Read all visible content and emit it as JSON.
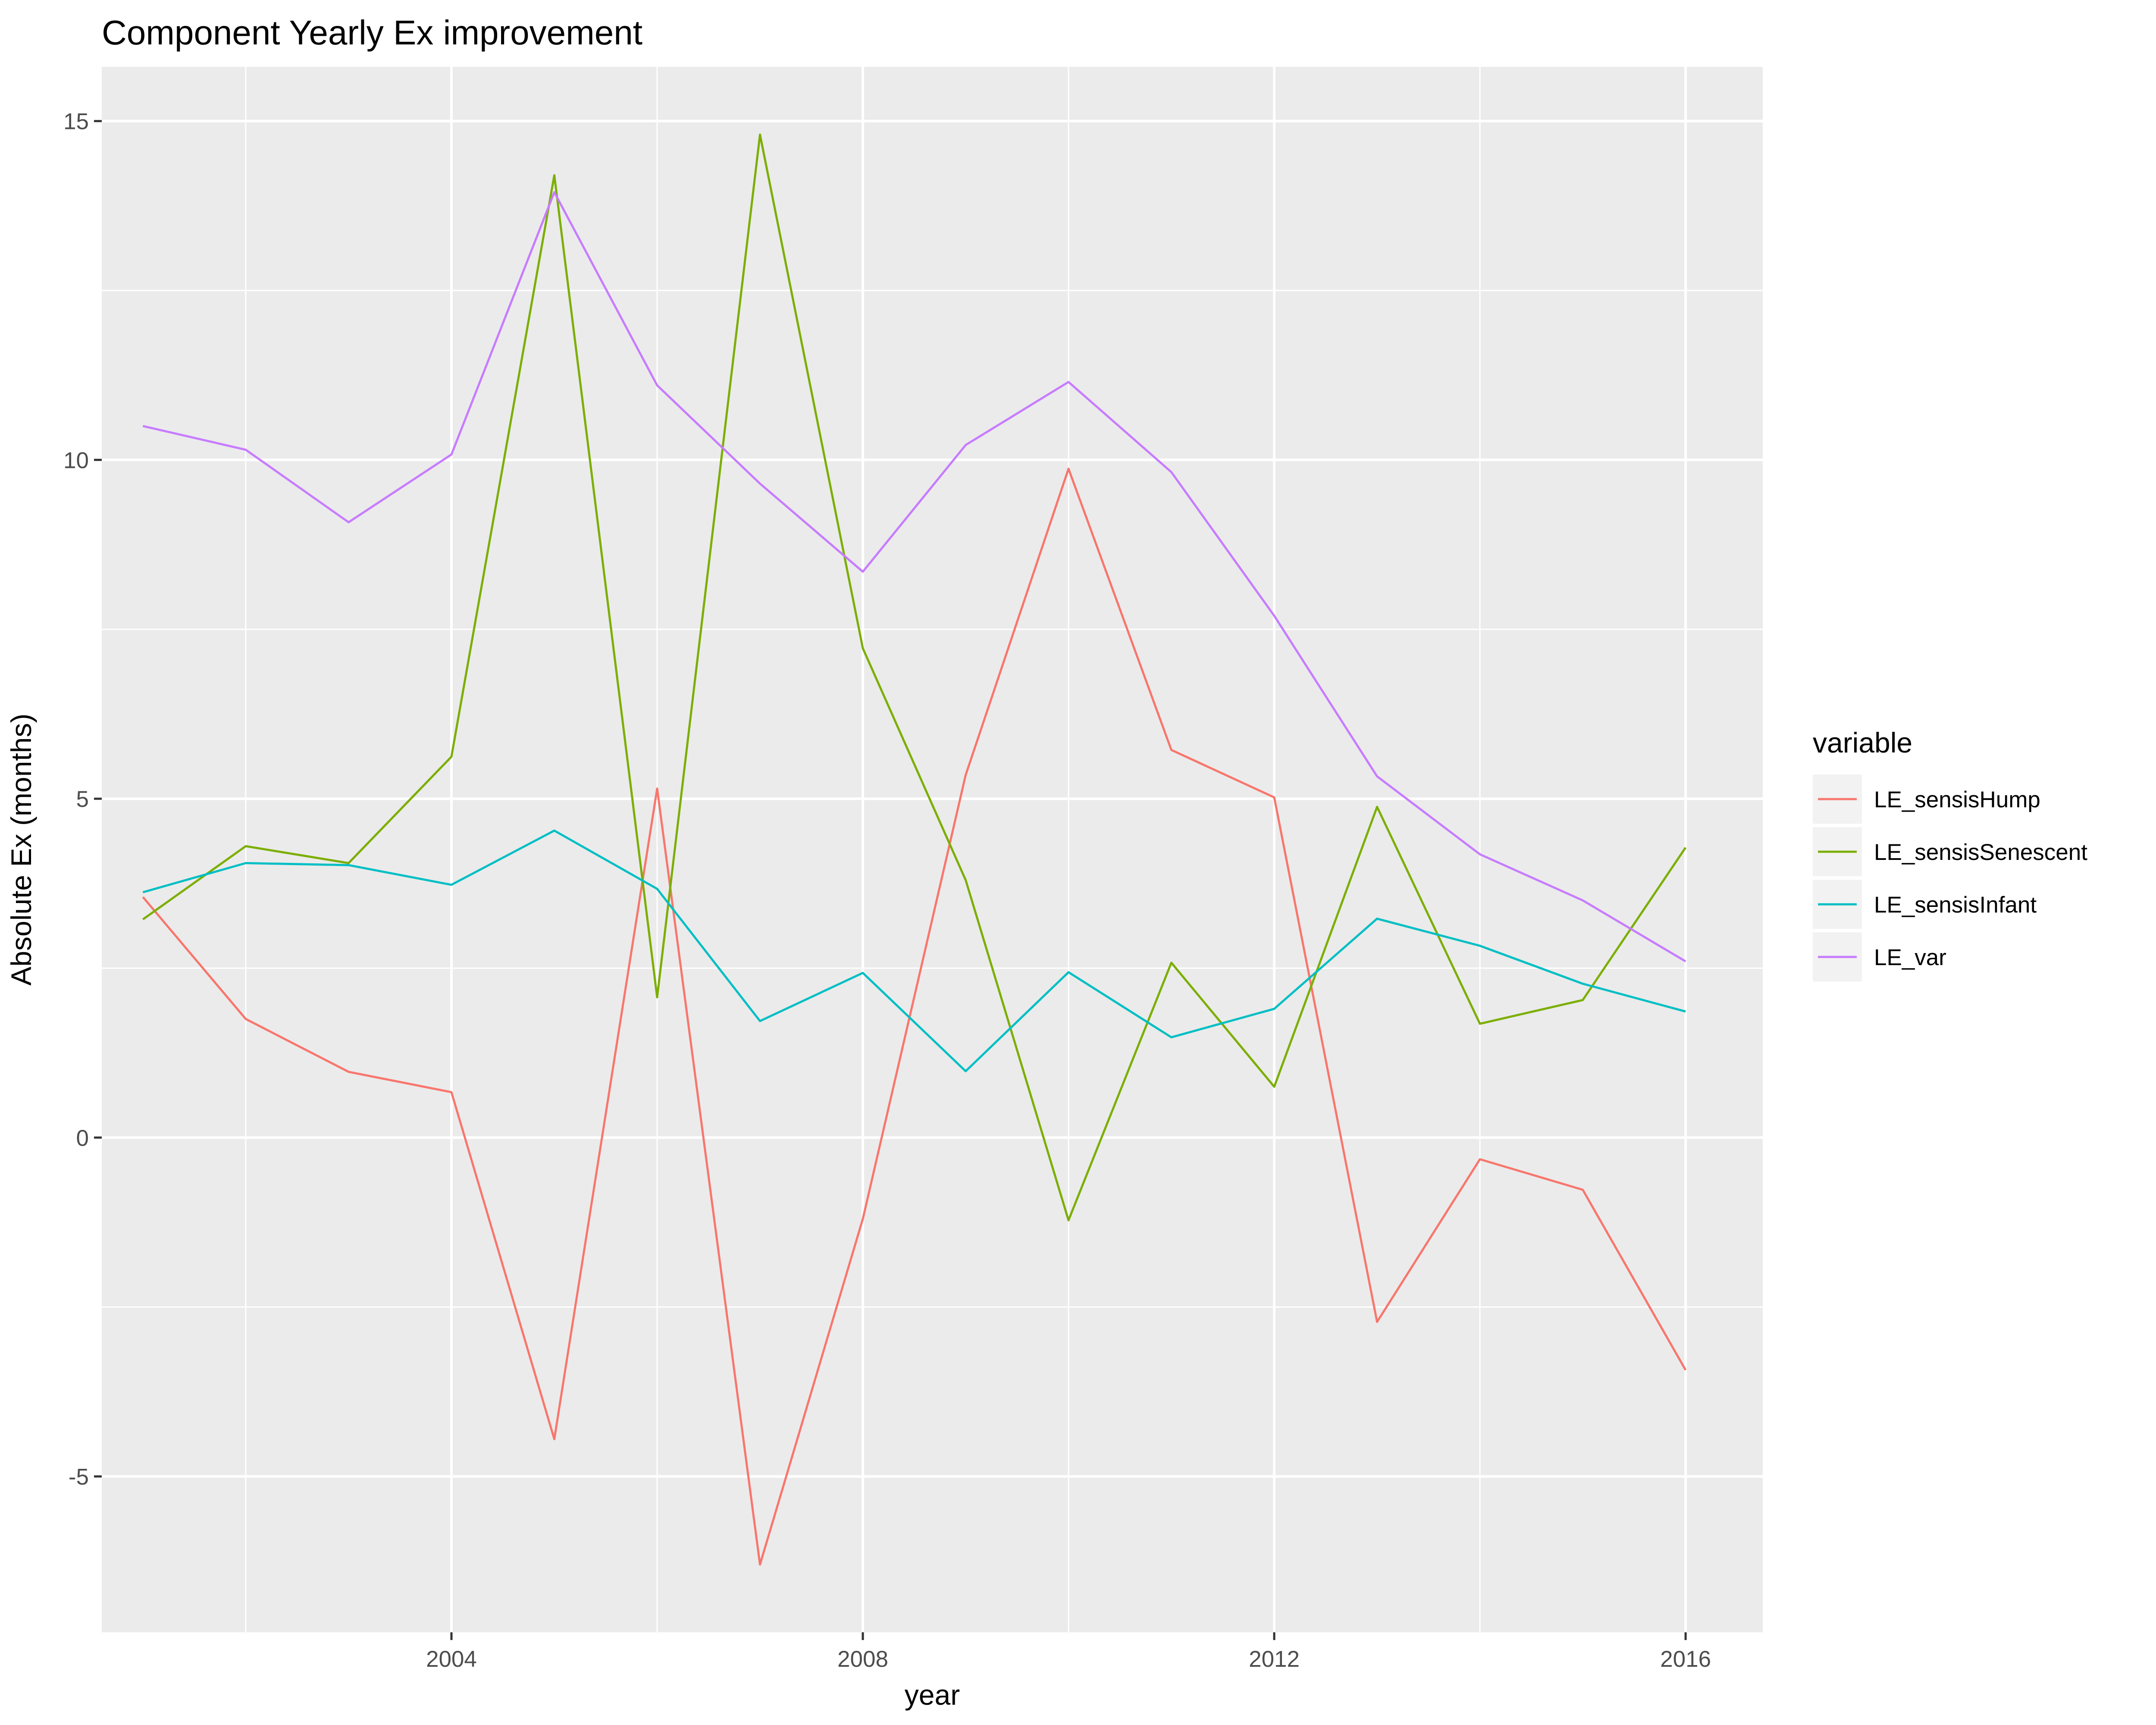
{
  "chart_data": {
    "type": "line",
    "title": "Component Yearly Ex improvement",
    "xlabel": "year",
    "ylabel": "Absolute Ex (months)",
    "x": [
      2001,
      2002,
      2003,
      2004,
      2005,
      2006,
      2007,
      2008,
      2009,
      2010,
      2011,
      2012,
      2013,
      2014,
      2015,
      2016
    ],
    "xlim": [
      2000.6,
      2016.75
    ],
    "ylim": [
      -7.3,
      15.8
    ],
    "x_ticks": [
      "2004",
      "2008",
      "2012",
      "2016"
    ],
    "y_ticks": [
      "-5",
      "0",
      "5",
      "10",
      "15"
    ],
    "grid": true,
    "legend_position": "right",
    "legend_title": "variable",
    "series": [
      {
        "name": "LE_sensisHump",
        "color": "#F8766D",
        "values": [
          3.55,
          1.75,
          0.97,
          0.67,
          -4.45,
          5.15,
          -6.3,
          -1.2,
          5.35,
          9.87,
          5.72,
          5.02,
          -2.72,
          -0.32,
          -0.77,
          -3.43
        ]
      },
      {
        "name": "LE_sensisSenescent",
        "color": "#7CAE00",
        "values": [
          3.22,
          4.3,
          4.05,
          5.62,
          14.2,
          2.07,
          14.8,
          7.22,
          3.8,
          -1.22,
          2.58,
          0.75,
          4.88,
          1.68,
          2.03,
          4.28
        ]
      },
      {
        "name": "LE_sensisInfant",
        "color": "#00BFC4",
        "values": [
          3.62,
          4.05,
          4.02,
          3.73,
          4.53,
          3.67,
          1.72,
          2.43,
          0.98,
          2.44,
          1.48,
          1.9,
          3.23,
          2.83,
          2.27,
          1.86
        ]
      },
      {
        "name": "LE_var",
        "color": "#C77CFF",
        "values": [
          10.5,
          10.15,
          9.08,
          10.08,
          13.95,
          11.1,
          9.65,
          8.35,
          10.22,
          11.15,
          9.82,
          7.7,
          5.33,
          4.18,
          3.5,
          2.6
        ]
      }
    ]
  }
}
